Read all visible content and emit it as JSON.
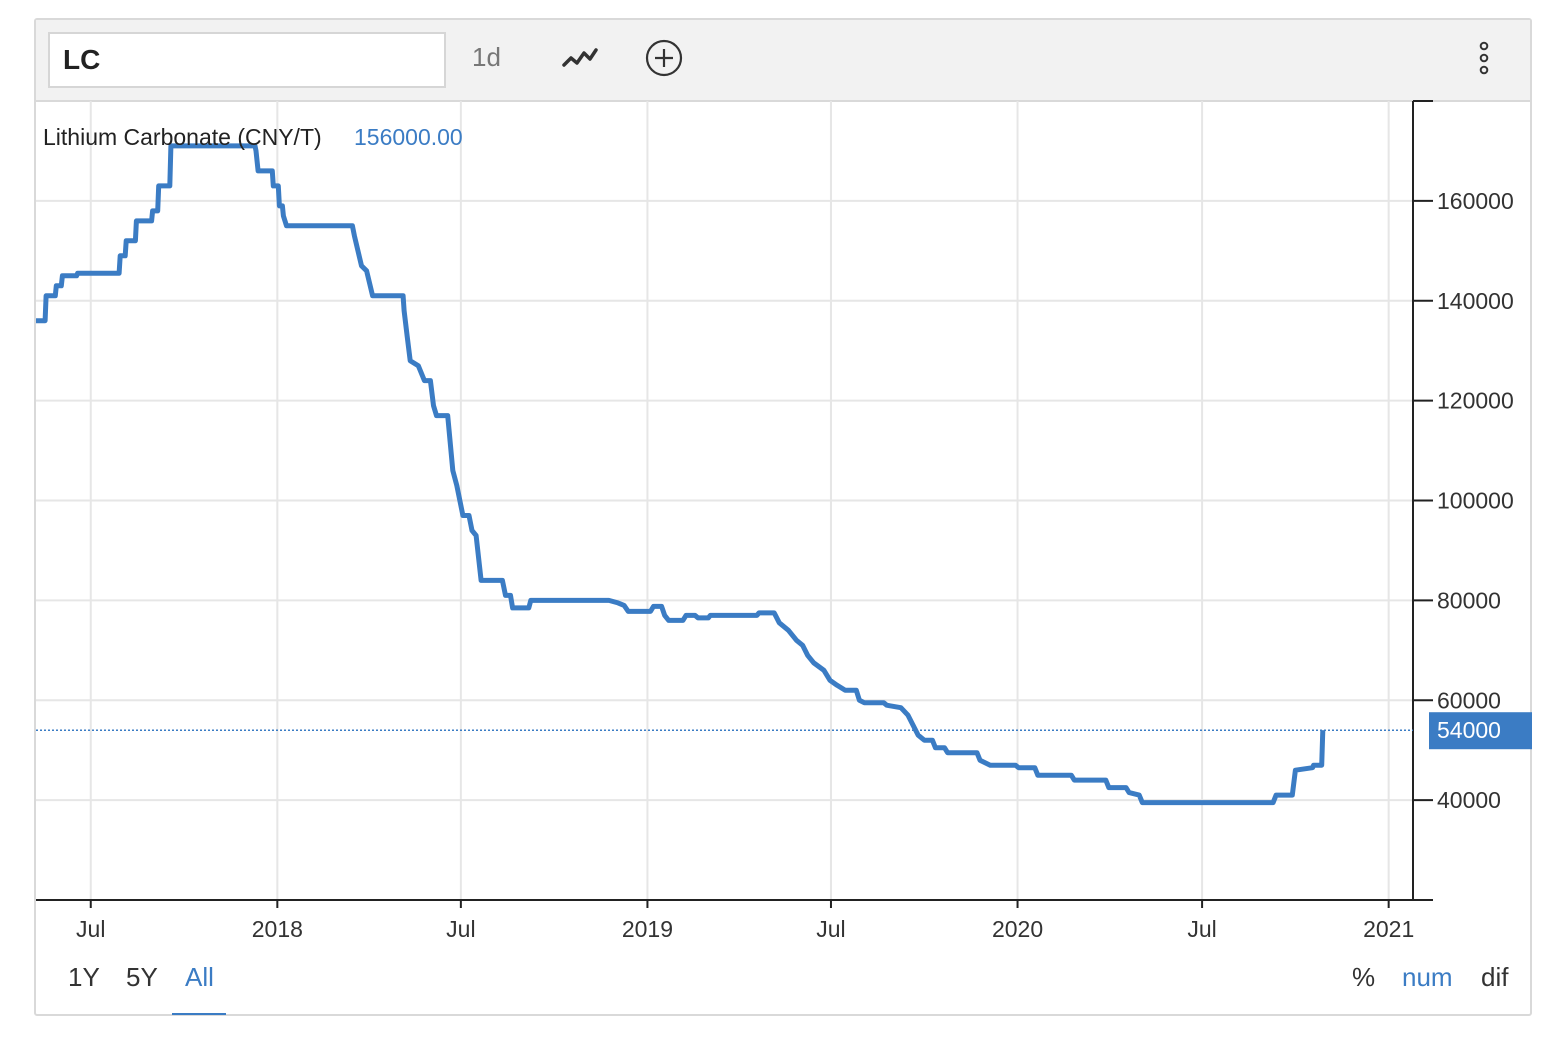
{
  "toolbar": {
    "symbol": "LC",
    "interval": "1d",
    "icons": [
      "line-chart-icon",
      "add-circle-icon",
      "more-vertical-icon"
    ]
  },
  "legend": {
    "series_name": "Lithium Carbonate (CNY/T)",
    "series_value": "156000.00"
  },
  "colors": {
    "line": "#3b7cc4",
    "grid": "#e6e6e6",
    "axis": "#222222",
    "last_price_bg": "#3b7cc4"
  },
  "last_price_label": "54000",
  "range_buttons": [
    {
      "label": "1Y",
      "active": false
    },
    {
      "label": "5Y",
      "active": false
    },
    {
      "label": "All",
      "active": true
    }
  ],
  "mode_buttons": [
    {
      "label": "%",
      "active": false
    },
    {
      "label": "num",
      "active": true
    },
    {
      "label": "dif",
      "active": false
    }
  ],
  "chart_data": {
    "type": "line",
    "title": "",
    "xlabel": "",
    "ylabel": "",
    "ylim": [
      20000,
      180000
    ],
    "xlim": [
      "2017-05-08",
      "2021-01-25"
    ],
    "yticks": [
      40000,
      60000,
      80000,
      100000,
      120000,
      140000,
      160000
    ],
    "ytick_labels": [
      "40000",
      "60000",
      "80000",
      "100000",
      "120000",
      "140000",
      "160000"
    ],
    "xticks": [
      "2017-07-01",
      "2018-01-01",
      "2018-07-01",
      "2019-01-01",
      "2019-07-01",
      "2020-01-01",
      "2020-07-01",
      "2021-01-01"
    ],
    "xtick_labels": [
      "Jul",
      "2018",
      "Jul",
      "2019",
      "Jul",
      "2020",
      "Jul",
      "2021"
    ],
    "grid": true,
    "last_value": 54000,
    "series": [
      {
        "name": "Lithium Carbonate (CNY/T)",
        "points": [
          [
            "2017-05-08",
            136000
          ],
          [
            "2017-05-17",
            136000
          ],
          [
            "2017-05-18",
            141000
          ],
          [
            "2017-05-27",
            141000
          ],
          [
            "2017-05-28",
            143000
          ],
          [
            "2017-06-02",
            143000
          ],
          [
            "2017-06-03",
            145000
          ],
          [
            "2017-06-17",
            145000
          ],
          [
            "2017-06-18",
            145500
          ],
          [
            "2017-07-29",
            145500
          ],
          [
            "2017-07-30",
            149000
          ],
          [
            "2017-08-04",
            149000
          ],
          [
            "2017-08-05",
            152000
          ],
          [
            "2017-08-14",
            152000
          ],
          [
            "2017-08-15",
            156000
          ],
          [
            "2017-08-30",
            156000
          ],
          [
            "2017-08-31",
            158000
          ],
          [
            "2017-09-05",
            158000
          ],
          [
            "2017-09-06",
            163000
          ],
          [
            "2017-09-17",
            163000
          ],
          [
            "2017-09-18",
            171000
          ],
          [
            "2017-12-10",
            171000
          ],
          [
            "2017-12-11",
            170000
          ],
          [
            "2017-12-13",
            166000
          ],
          [
            "2017-12-27",
            166000
          ],
          [
            "2017-12-28",
            163000
          ],
          [
            "2018-01-02",
            163000
          ],
          [
            "2018-01-03",
            159000
          ],
          [
            "2018-01-06",
            159000
          ],
          [
            "2018-01-07",
            157000
          ],
          [
            "2018-01-10",
            155000
          ],
          [
            "2018-03-16",
            155000
          ],
          [
            "2018-03-18",
            153000
          ],
          [
            "2018-03-25",
            147000
          ],
          [
            "2018-03-30",
            146000
          ],
          [
            "2018-04-05",
            141000
          ],
          [
            "2018-05-05",
            141000
          ],
          [
            "2018-05-06",
            138000
          ],
          [
            "2018-05-09",
            133000
          ],
          [
            "2018-05-12",
            128000
          ],
          [
            "2018-05-20",
            127000
          ],
          [
            "2018-05-26",
            124000
          ],
          [
            "2018-06-01",
            124000
          ],
          [
            "2018-06-04",
            119000
          ],
          [
            "2018-06-07",
            117000
          ],
          [
            "2018-06-18",
            117000
          ],
          [
            "2018-06-23",
            106000
          ],
          [
            "2018-06-27",
            103000
          ],
          [
            "2018-07-03",
            97000
          ],
          [
            "2018-07-09",
            97000
          ],
          [
            "2018-07-12",
            94000
          ],
          [
            "2018-07-16",
            93000
          ],
          [
            "2018-07-21",
            84000
          ],
          [
            "2018-08-11",
            84000
          ],
          [
            "2018-08-14",
            81000
          ],
          [
            "2018-08-19",
            81000
          ],
          [
            "2018-08-21",
            78500
          ],
          [
            "2018-09-06",
            78500
          ],
          [
            "2018-09-08",
            80000
          ],
          [
            "2018-11-24",
            80000
          ],
          [
            "2018-12-03",
            79500
          ],
          [
            "2018-12-09",
            79000
          ],
          [
            "2018-12-13",
            77800
          ],
          [
            "2019-01-04",
            77800
          ],
          [
            "2019-01-07",
            78800
          ],
          [
            "2019-01-15",
            78800
          ],
          [
            "2019-01-18",
            77000
          ],
          [
            "2019-01-22",
            76000
          ],
          [
            "2019-02-05",
            76000
          ],
          [
            "2019-02-08",
            77000
          ],
          [
            "2019-02-17",
            77000
          ],
          [
            "2019-02-20",
            76500
          ],
          [
            "2019-03-02",
            76500
          ],
          [
            "2019-03-04",
            77000
          ],
          [
            "2019-04-19",
            77000
          ],
          [
            "2019-04-21",
            77500
          ],
          [
            "2019-05-06",
            77500
          ],
          [
            "2019-05-11",
            75500
          ],
          [
            "2019-05-20",
            74000
          ],
          [
            "2019-05-28",
            72000
          ],
          [
            "2019-06-03",
            71000
          ],
          [
            "2019-06-08",
            69000
          ],
          [
            "2019-06-14",
            67500
          ],
          [
            "2019-06-24",
            66000
          ],
          [
            "2019-06-30",
            64000
          ],
          [
            "2019-07-07",
            63000
          ],
          [
            "2019-07-15",
            62000
          ],
          [
            "2019-07-26",
            62000
          ],
          [
            "2019-07-29",
            60000
          ],
          [
            "2019-08-03",
            59500
          ],
          [
            "2019-08-22",
            59500
          ],
          [
            "2019-08-25",
            59000
          ],
          [
            "2019-09-08",
            58500
          ],
          [
            "2019-09-15",
            57000
          ],
          [
            "2019-09-20",
            55000
          ],
          [
            "2019-09-25",
            53000
          ],
          [
            "2019-10-01",
            52000
          ],
          [
            "2019-10-09",
            52000
          ],
          [
            "2019-10-12",
            50500
          ],
          [
            "2019-10-21",
            50500
          ],
          [
            "2019-10-24",
            49500
          ],
          [
            "2019-11-22",
            49500
          ],
          [
            "2019-11-25",
            48000
          ],
          [
            "2019-12-05",
            47000
          ],
          [
            "2019-12-30",
            47000
          ],
          [
            "2020-01-02",
            46500
          ],
          [
            "2020-01-18",
            46500
          ],
          [
            "2020-01-21",
            45000
          ],
          [
            "2020-02-23",
            45000
          ],
          [
            "2020-02-26",
            44000
          ],
          [
            "2020-03-28",
            44000
          ],
          [
            "2020-03-31",
            42500
          ],
          [
            "2020-04-17",
            42500
          ],
          [
            "2020-04-20",
            41500
          ],
          [
            "2020-04-30",
            41000
          ],
          [
            "2020-05-03",
            39500
          ],
          [
            "2020-09-09",
            39500
          ],
          [
            "2020-09-12",
            41000
          ],
          [
            "2020-09-28",
            41000
          ],
          [
            "2020-10-01",
            46000
          ],
          [
            "2020-10-18",
            46500
          ],
          [
            "2020-10-19",
            47000
          ],
          [
            "2020-10-27",
            47000
          ],
          [
            "2020-10-28",
            54000
          ]
        ]
      }
    ]
  }
}
